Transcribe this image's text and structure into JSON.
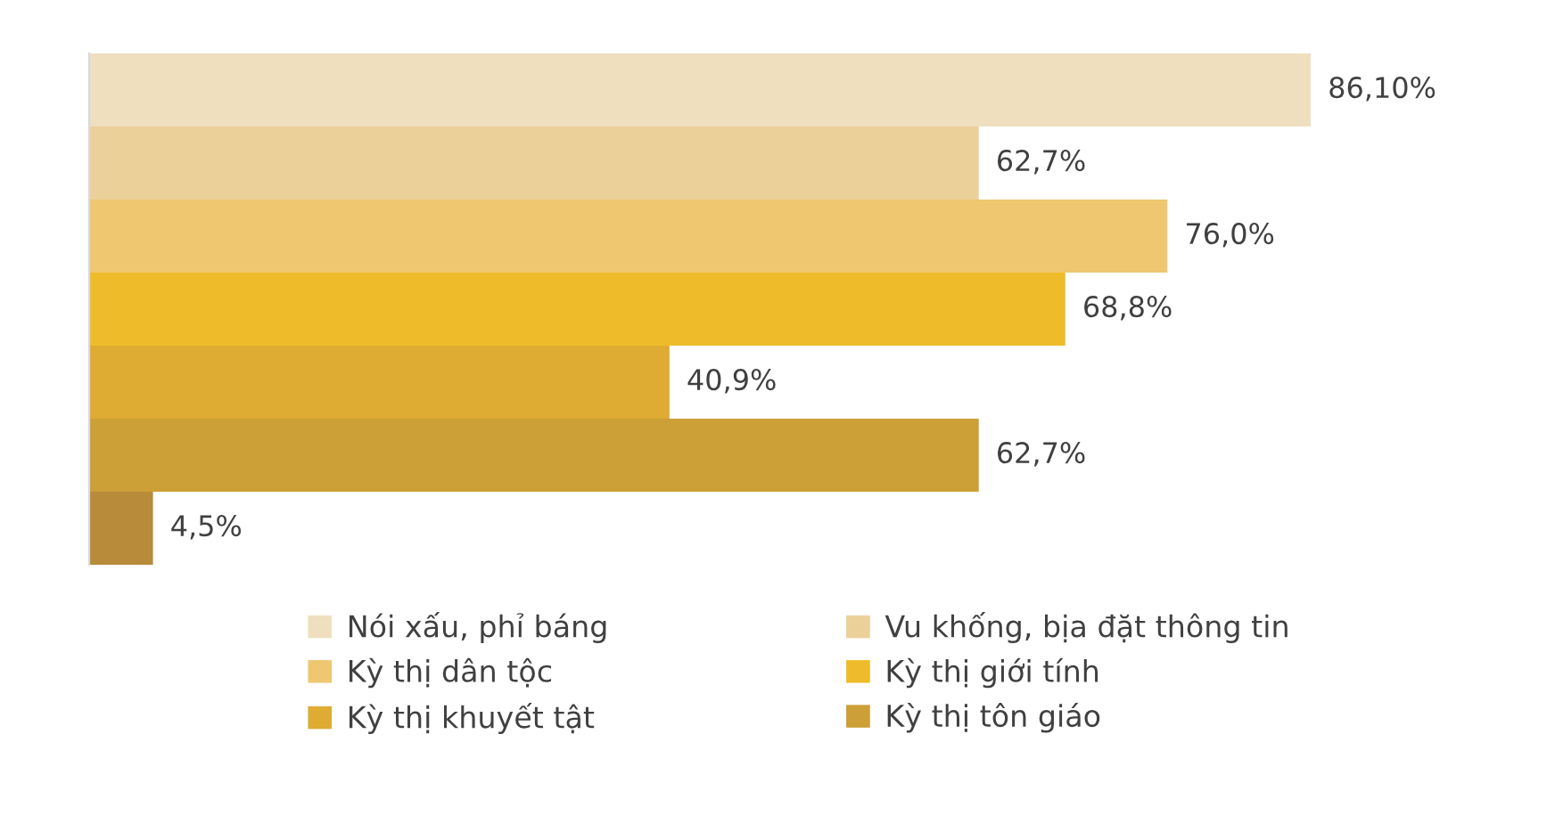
{
  "chart_data": {
    "type": "bar",
    "orientation": "horizontal",
    "stacked": true,
    "categories": [
      null,
      null,
      null,
      null,
      null,
      null,
      null
    ],
    "tick_labels": false,
    "grid": false,
    "legend": "bottom",
    "series": [
      {
        "name": "Nói xấu, phỉ báng",
        "color": "#efdfbf",
        "values": [
          86.1,
          null,
          null,
          null,
          null,
          null,
          null
        ],
        "value_labels": [
          "86,10%",
          null,
          null,
          null,
          null,
          null,
          null
        ]
      },
      {
        "name": "Vu khống, bịa đặt thông tin",
        "color": "#ecd09a",
        "values": [
          null,
          62.7,
          null,
          null,
          null,
          null,
          null
        ],
        "value_labels": [
          null,
          "62,7%",
          null,
          null,
          null,
          null,
          null
        ]
      },
      {
        "name": "Kỳ thị dân tộc",
        "color": "#efc771",
        "values": [
          null,
          null,
          76.0,
          null,
          null,
          null,
          null
        ],
        "value_labels": [
          null,
          null,
          "76,0%",
          null,
          null,
          null,
          null
        ]
      },
      {
        "name": "Kỳ thị giới tính",
        "color": "#eebc2a",
        "values": [
          null,
          null,
          null,
          68.8,
          null,
          null,
          null
        ],
        "value_labels": [
          null,
          null,
          null,
          "68,8%",
          null,
          null,
          null
        ]
      },
      {
        "name": "Kỳ thị khuyết tật",
        "color": "#deab33",
        "values": [
          null,
          null,
          null,
          null,
          40.9,
          null,
          null
        ],
        "value_labels": [
          null,
          null,
          null,
          null,
          "40,9%",
          null,
          null
        ]
      },
      {
        "name": "Kỳ thị tôn giáo",
        "color": "#cc9f37",
        "values": [
          null,
          null,
          null,
          null,
          null,
          62.7,
          null
        ],
        "value_labels": [
          null,
          null,
          null,
          null,
          null,
          "62,7%",
          null
        ]
      },
      {
        "color": "#b78b3a",
        "values": [
          null,
          null,
          null,
          null,
          null,
          null,
          4.5
        ],
        "value_labels": [
          null,
          null,
          null,
          null,
          null,
          null,
          "4,5%"
        ]
      }
    ]
  }
}
